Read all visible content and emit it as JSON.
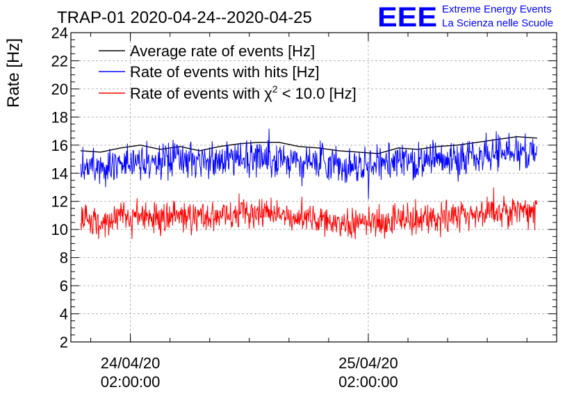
{
  "chart_data": {
    "type": "line",
    "title": "TRAP-01 2020-04-24--2020-04-25",
    "ylabel": "Rate [Hz]",
    "xlabel": "",
    "ylim": [
      2,
      24
    ],
    "yticks": [
      2,
      4,
      6,
      8,
      10,
      12,
      14,
      16,
      18,
      20,
      22,
      24
    ],
    "xlim": [
      "2020-04-23 20:00:00",
      "2020-04-25 21:00:00"
    ],
    "xticks": [
      {
        "x": "2020-04-24 02:00:00",
        "line1": "24/04/20",
        "line2": "02:00:00"
      },
      {
        "x": "2020-04-25 02:00:00",
        "line1": "25/04/20",
        "line2": "02:00:00"
      }
    ],
    "grid": true,
    "legend_position": "top-left",
    "series": [
      {
        "name": "Average rate of events [Hz]",
        "color": "#000000",
        "style": "smooth",
        "x": [
          "2020-04-23 21:00:00",
          "2020-04-23 23:00:00",
          "2020-04-24 01:00:00",
          "2020-04-24 03:00:00",
          "2020-04-24 05:00:00",
          "2020-04-24 07:00:00",
          "2020-04-24 09:00:00",
          "2020-04-24 11:00:00",
          "2020-04-24 13:00:00",
          "2020-04-24 15:00:00",
          "2020-04-24 17:00:00",
          "2020-04-24 19:00:00",
          "2020-04-24 21:00:00",
          "2020-04-24 23:00:00",
          "2020-04-25 01:00:00",
          "2020-04-25 03:00:00",
          "2020-04-25 05:00:00",
          "2020-04-25 07:00:00",
          "2020-04-25 09:00:00",
          "2020-04-25 11:00:00",
          "2020-04-25 13:00:00",
          "2020-04-25 15:00:00",
          "2020-04-25 17:00:00",
          "2020-04-25 19:00:00"
        ],
        "y": [
          15.6,
          15.5,
          15.8,
          16.0,
          15.7,
          15.9,
          15.6,
          15.9,
          16.1,
          16.2,
          16.2,
          15.9,
          15.8,
          15.6,
          15.5,
          15.4,
          15.8,
          15.7,
          15.9,
          16.0,
          16.2,
          16.4,
          16.6,
          16.5
        ]
      },
      {
        "name": "Rate of events with hits [Hz]",
        "color": "#0000ff",
        "style": "noisy",
        "noise": 0.65,
        "x": [
          "2020-04-23 21:00:00",
          "2020-04-23 23:00:00",
          "2020-04-24 01:00:00",
          "2020-04-24 03:00:00",
          "2020-04-24 05:00:00",
          "2020-04-24 07:00:00",
          "2020-04-24 09:00:00",
          "2020-04-24 11:00:00",
          "2020-04-24 13:00:00",
          "2020-04-24 15:00:00",
          "2020-04-24 17:00:00",
          "2020-04-24 19:00:00",
          "2020-04-24 21:00:00",
          "2020-04-24 23:00:00",
          "2020-04-25 01:00:00",
          "2020-04-25 03:00:00",
          "2020-04-25 05:00:00",
          "2020-04-25 07:00:00",
          "2020-04-25 09:00:00",
          "2020-04-25 11:00:00",
          "2020-04-25 13:00:00",
          "2020-04-25 15:00:00",
          "2020-04-25 17:00:00",
          "2020-04-25 19:00:00"
        ],
        "y": [
          14.7,
          14.6,
          14.8,
          15.0,
          14.8,
          14.9,
          14.7,
          14.9,
          15.1,
          15.2,
          15.1,
          14.9,
          14.8,
          14.6,
          14.5,
          14.5,
          14.8,
          14.8,
          15.0,
          15.1,
          15.3,
          15.4,
          15.5,
          15.4
        ]
      },
      {
        "name": "Rate of events with χ² < 10.0 [Hz]",
        "legend_prefix": "Rate of events with ",
        "legend_chi": "χ",
        "legend_sup": "2",
        "legend_suffix": " < 10.0 [Hz]",
        "color": "#ff0000",
        "style": "noisy",
        "noise": 0.55,
        "x": [
          "2020-04-23 21:00:00",
          "2020-04-23 23:00:00",
          "2020-04-24 01:00:00",
          "2020-04-24 03:00:00",
          "2020-04-24 05:00:00",
          "2020-04-24 07:00:00",
          "2020-04-24 09:00:00",
          "2020-04-24 11:00:00",
          "2020-04-24 13:00:00",
          "2020-04-24 15:00:00",
          "2020-04-24 17:00:00",
          "2020-04-24 19:00:00",
          "2020-04-24 21:00:00",
          "2020-04-24 23:00:00",
          "2020-04-25 01:00:00",
          "2020-04-25 03:00:00",
          "2020-04-25 05:00:00",
          "2020-04-25 07:00:00",
          "2020-04-25 09:00:00",
          "2020-04-25 11:00:00",
          "2020-04-25 13:00:00",
          "2020-04-25 15:00:00",
          "2020-04-25 17:00:00",
          "2020-04-25 19:00:00"
        ],
        "y": [
          10.7,
          10.6,
          10.8,
          11.0,
          10.8,
          10.9,
          10.7,
          11.0,
          11.2,
          11.2,
          11.1,
          10.9,
          10.7,
          10.5,
          10.4,
          10.5,
          10.7,
          10.8,
          10.9,
          11.0,
          11.2,
          11.3,
          11.3,
          11.2
        ]
      }
    ]
  },
  "logo": {
    "text": "EEE",
    "line1": "Extreme Energy Events",
    "line2": "La Scienza nelle Scuole",
    "color": "#0000ff"
  }
}
